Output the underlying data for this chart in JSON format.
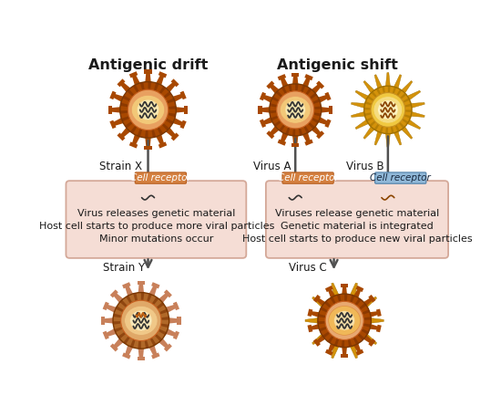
{
  "title_left": "Antigenic drift",
  "title_right": "Antigenic shift",
  "left_box_text": "Virus releases genetic material\nHost cell starts to produce more viral particles\nMinor mutations occur",
  "right_box_text": "Viruses release genetic material\nGenetic material is integrated\nHost cell starts to produce new viral particles",
  "label_strain_x": "Strain X",
  "label_virus_a": "Virus A",
  "label_virus_b": "Virus B",
  "label_strain_y": "Strain Y",
  "label_virus_c": "Virus C",
  "cell_receptor_label": "Cell receptor",
  "bg_color": "#ffffff",
  "box_fill": "#f5ddd5",
  "box_edge": "#d4a898",
  "virus_brown_outer": "#a84800",
  "virus_brown_ring": "#c8621a",
  "virus_brown_inner_ring": "#e8a060",
  "virus_brown_inner": "#f2c878",
  "virus_brown_core": "#f8e8b0",
  "virus_yellow_outer": "#d4920a",
  "virus_yellow_ring": "#e8aa20",
  "virus_yellow_inner_ring": "#f0c840",
  "virus_yellow_inner": "#f5dc80",
  "virus_yellow_core": "#fdf2c0",
  "arrow_color": "#505050",
  "receptor_brown_fill": "#d48040",
  "receptor_brown_edge": "#b86020",
  "receptor_blue_fill": "#90b8d8",
  "receptor_blue_edge": "#5080a8",
  "text_color": "#1a1a1a",
  "wavy_dark": "#333333",
  "wavy_brown": "#8B4500",
  "wavy_orange": "#c06010",
  "spike_y_color": "#c87800",
  "strain_y_outer": "#b06828",
  "strain_y_ring": "#c87838",
  "strain_y_inner_ring": "#e0a868",
  "strain_y_inner": "#f0c888",
  "strain_y_core": "#f8e8b8",
  "strain_y_spike": "#c8805a"
}
